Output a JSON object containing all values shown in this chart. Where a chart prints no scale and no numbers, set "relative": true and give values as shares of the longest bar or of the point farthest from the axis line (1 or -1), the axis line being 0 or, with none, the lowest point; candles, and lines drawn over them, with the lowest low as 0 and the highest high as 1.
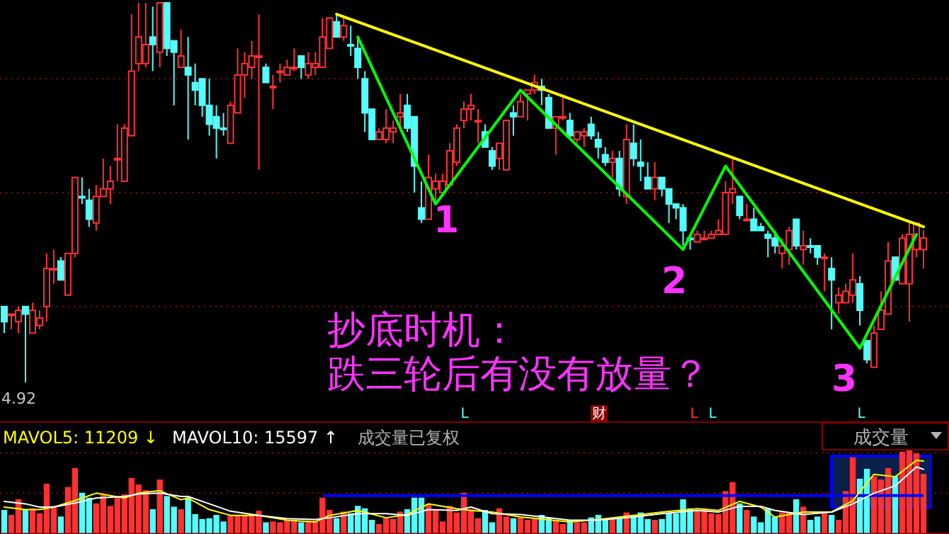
{
  "chart_data": [
    {
      "type": "candlestick",
      "relative": true,
      "ref_lines": [
        {
          "axis": "y",
          "value": 0.8,
          "color": "#7a1010",
          "line_style": "dotted"
        },
        {
          "axis": "y",
          "value": 0.5,
          "color": "#7a1010",
          "line_style": "dotted"
        },
        {
          "axis": "y",
          "value": 0.2,
          "color": "#7a1010",
          "line_style": "dotted"
        }
      ],
      "categories": [
        null,
        null,
        null,
        null,
        null,
        null,
        null,
        null,
        null,
        null,
        null,
        null,
        null,
        null,
        null,
        null,
        null,
        null,
        null,
        null,
        null,
        null,
        null,
        null,
        null,
        null,
        null,
        null,
        null,
        null,
        null,
        null,
        null,
        null,
        null,
        null,
        null,
        null,
        null,
        null,
        null,
        null,
        null,
        null,
        null,
        null,
        null,
        null,
        null,
        null,
        null,
        null,
        null,
        null,
        null,
        null,
        null,
        null,
        null,
        null,
        null,
        null,
        null,
        null,
        null,
        null,
        null,
        null,
        null,
        null,
        null,
        null,
        null,
        null,
        null,
        null,
        null,
        null,
        null,
        null,
        null,
        null,
        null,
        null,
        null,
        null,
        null,
        null,
        null,
        null,
        null,
        null,
        null,
        null,
        null,
        null,
        null,
        null,
        null,
        null,
        null,
        null,
        null,
        null,
        null,
        null,
        null,
        null,
        null,
        null,
        null,
        null,
        null,
        null,
        null,
        null,
        null,
        null,
        null,
        null,
        null,
        null,
        null,
        null,
        null,
        null,
        null,
        null,
        null,
        null,
        null
      ],
      "ohlc": [
        [
          0.2,
          0.2,
          0.13,
          0.16
        ],
        [
          0.18,
          0.18,
          0.14,
          0.18
        ],
        [
          0.16,
          0.2,
          0.13,
          0.19
        ],
        [
          0.2,
          0.2,
          0,
          0.18
        ],
        [
          0.13,
          0.21,
          0.13,
          0.19
        ],
        [
          0.15,
          0.19,
          0.14,
          0.17
        ],
        [
          0.2,
          0.34,
          0.16,
          0.3
        ],
        [
          0.3,
          0.35,
          0.26,
          0.3
        ],
        [
          0.32,
          0.33,
          0.27,
          0.27
        ],
        [
          0.23,
          0.34,
          0.23,
          0.34
        ],
        [
          0.34,
          0.54,
          0.33,
          0.54
        ],
        [
          0.49,
          0.54,
          0.47,
          0.49
        ],
        [
          0.48,
          0.51,
          0.41,
          0.43
        ],
        [
          0.42,
          0.52,
          0.4,
          0.49
        ],
        [
          0.49,
          0.59,
          0.49,
          0.51
        ],
        [
          0.51,
          0.57,
          0.47,
          0.53
        ],
        [
          0.59,
          0.68,
          0.53,
          0.59
        ],
        [
          0.53,
          0.68,
          0.53,
          0.67
        ],
        [
          0.65,
          0.97,
          0.65,
          0.82
        ],
        [
          0.84,
          1,
          0.82,
          0.91
        ],
        [
          0.84,
          1,
          0.83,
          0.89
        ],
        [
          0.91,
          0.99,
          0.82,
          0.89
        ],
        [
          0.87,
          1,
          0.83,
          1
        ],
        [
          1,
          1,
          0.86,
          0.88
        ],
        [
          0.9,
          0.9,
          0.73,
          0.87
        ],
        [
          0.83,
          0.93,
          0.83,
          0.86
        ],
        [
          0.83,
          0.91,
          0.64,
          0.81
        ],
        [
          0.79,
          0.84,
          0.73,
          0.77
        ],
        [
          0.8,
          0.8,
          0.7,
          0.73
        ],
        [
          0.73,
          0.8,
          0.65,
          0.68
        ],
        [
          0.7,
          0.73,
          0.59,
          0.67
        ],
        [
          0.67,
          0.71,
          0.65,
          0.67
        ],
        [
          0.63,
          0.74,
          0.63,
          0.73
        ],
        [
          0.71,
          0.88,
          0.71,
          0.81
        ],
        [
          0.81,
          0.87,
          0.75,
          0.84
        ],
        [
          0.83,
          0.9,
          0.8,
          0.86
        ],
        [
          0.86,
          0.97,
          0.56,
          0.86
        ],
        [
          0.83,
          0.84,
          0.79,
          0.79
        ],
        [
          0.78,
          0.81,
          0.72,
          0.78
        ],
        [
          0.82,
          0.84,
          0.79,
          0.82
        ],
        [
          0.81,
          0.85,
          0.81,
          0.83
        ],
        [
          0.83,
          0.88,
          0.82,
          0.83
        ],
        [
          0.86,
          0.86,
          0.8,
          0.83
        ],
        [
          0.81,
          0.87,
          0.8,
          0.84
        ],
        [
          0.83,
          0.87,
          0.81,
          0.84
        ],
        [
          0.83,
          0.96,
          0.83,
          0.91
        ],
        [
          0.88,
          0.96,
          0.88,
          0.96
        ],
        [
          0.95,
          0.97,
          0.91,
          0.91
        ],
        [
          0.91,
          0.96,
          0.9,
          0.94
        ],
        [
          0.89,
          0.94,
          0.86,
          0.89
        ],
        [
          0.88,
          0.91,
          0.8,
          0.83
        ],
        [
          0.8,
          0.82,
          0.66,
          0.71
        ],
        [
          0.72,
          0.72,
          0.64,
          0.64
        ],
        [
          0.64,
          0.67,
          0.64,
          0.66
        ],
        [
          0.64,
          0.72,
          0.63,
          0.67
        ],
        [
          0.66,
          0.69,
          0.63,
          0.67
        ],
        [
          0.7,
          0.76,
          0.67,
          0.71
        ],
        [
          0.73,
          0.76,
          0.66,
          0.67
        ],
        [
          0.7,
          0.7,
          0.5,
          0.57
        ],
        [
          0.46,
          0.53,
          0.42,
          0.43
        ],
        [
          0.43,
          0.6,
          0.43,
          0.54
        ],
        [
          0.51,
          0.55,
          0.47,
          0.53
        ],
        [
          0.5,
          0.55,
          0.49,
          0.53
        ],
        [
          0.52,
          0.63,
          0.52,
          0.61
        ],
        [
          0.58,
          0.68,
          0.57,
          0.67
        ],
        [
          0.69,
          0.74,
          0.67,
          0.72
        ],
        [
          0.72,
          0.76,
          0.69,
          0.73
        ],
        [
          0.69,
          0.72,
          0.63,
          0.69
        ],
        [
          0.66,
          0.68,
          0.62,
          0.62
        ],
        [
          0.61,
          0.62,
          0.56,
          0.57
        ],
        [
          0.59,
          0.63,
          0.56,
          0.63
        ],
        [
          0.56,
          0.69,
          0.56,
          0.69
        ],
        [
          0.71,
          0.73,
          0.65,
          0.7
        ],
        [
          0.7,
          0.76,
          0.7,
          0.74
        ],
        [
          0.76,
          0.77,
          0.69,
          0.77
        ],
        [
          0.77,
          0.81,
          0.76,
          0.79
        ],
        [
          0.78,
          0.8,
          0.73,
          0.77
        ],
        [
          0.75,
          0.76,
          0.67,
          0.67
        ],
        [
          0.67,
          0.7,
          0.6,
          0.7
        ],
        [
          0.7,
          0.75,
          0.69,
          0.7
        ],
        [
          0.69,
          0.71,
          0.64,
          0.65
        ],
        [
          0.64,
          0.66,
          0.63,
          0.66
        ],
        [
          0.65,
          0.67,
          0.62,
          0.66
        ],
        [
          0.68,
          0.7,
          0.64,
          0.65
        ],
        [
          0.64,
          0.66,
          0.59,
          0.62
        ],
        [
          0.6,
          0.62,
          0.57,
          0.58
        ],
        [
          0.58,
          0.61,
          0.54,
          0.59
        ],
        [
          0.59,
          0.61,
          0.49,
          0.51
        ],
        [
          0.49,
          0.68,
          0.47,
          0.64
        ],
        [
          0.63,
          0.68,
          0.57,
          0.59
        ],
        [
          0.58,
          0.64,
          0.53,
          0.57
        ],
        [
          0.54,
          0.58,
          0.51,
          0.51
        ],
        [
          0.51,
          0.58,
          0.48,
          0.54
        ],
        [
          0.54,
          0.54,
          0.49,
          0.51
        ],
        [
          0.51,
          0.51,
          0.42,
          0.47
        ],
        [
          0.47,
          0.47,
          0.43,
          0.46
        ],
        [
          0.46,
          0.47,
          0.36,
          0.4
        ],
        [
          0.38,
          0.39,
          0.35,
          0.38
        ],
        [
          0.37,
          0.4,
          0.37,
          0.39
        ],
        [
          0.38,
          0.4,
          0.38,
          0.38
        ],
        [
          0.38,
          0.4,
          0.38,
          0.39
        ],
        [
          0.39,
          0.43,
          0.39,
          0.4
        ],
        [
          0.39,
          0.53,
          0.39,
          0.5
        ],
        [
          0.5,
          0.59,
          0.47,
          0.51
        ],
        [
          0.49,
          0.49,
          0.43,
          0.44
        ],
        [
          0.43,
          0.47,
          0.43,
          0.43
        ],
        [
          0.43,
          0.46,
          0.4,
          0.4
        ],
        [
          0.41,
          0.42,
          0.4,
          0.4
        ],
        [
          0.39,
          0.4,
          0.33,
          0.38
        ],
        [
          0.38,
          0.4,
          0.34,
          0.36
        ],
        [
          0.34,
          0.38,
          0.3,
          0.36
        ],
        [
          0.35,
          0.41,
          0.31,
          0.4
        ],
        [
          0.43,
          0.43,
          0.35,
          0.36
        ],
        [
          0.35,
          0.4,
          0.31,
          0.36
        ],
        [
          0.36,
          0.38,
          0.34,
          0.36
        ],
        [
          0.36,
          0.36,
          0.31,
          0.33
        ],
        [
          0.33,
          0.34,
          0.24,
          0.33
        ],
        [
          0.3,
          0.33,
          0.14,
          0.27
        ],
        [
          0.21,
          0.25,
          0.18,
          0.23
        ],
        [
          0.21,
          0.26,
          0.21,
          0.24
        ],
        [
          0.23,
          0.34,
          0.21,
          0.27
        ],
        [
          0.26,
          0.28,
          0.15,
          0.19
        ],
        [
          0.11,
          0.11,
          0.05,
          0.06
        ],
        [
          0.04,
          0.15,
          0.04,
          0.13
        ],
        [
          0.14,
          0.24,
          0.14,
          0.19
        ],
        [
          0.18,
          0.37,
          0.18,
          0.32
        ],
        [
          0.33,
          0.33,
          0.27,
          0.27
        ],
        [
          0.26,
          0.39,
          0.26,
          0.38
        ],
        [
          0.26,
          0.42,
          0.16,
          0.39
        ],
        [
          0.35,
          0.42,
          0.33,
          0.42
        ],
        [
          0.35,
          0.4,
          0.3,
          0.38
        ]
      ],
      "colors": [
        "#54fcfc",
        "#ff3232",
        "#ff3232",
        "#54fcfc",
        "#ff3232",
        "#ff3232",
        "#ff3232",
        "#ff3232",
        "#54fcfc",
        "#ff3232",
        "#ff3232",
        "#54fcfc",
        "#54fcfc",
        "#ff3232",
        "#ff3232",
        "#ff3232",
        "#ff3232",
        "#ff3232",
        "#ff3232",
        "#ff3232",
        "#ff3232",
        "#54fcfc",
        "#ff3232",
        "#54fcfc",
        "#54fcfc",
        "#ff3232",
        "#54fcfc",
        "#54fcfc",
        "#54fcfc",
        "#54fcfc",
        "#54fcfc",
        "#54fcfc",
        "#ff3232",
        "#ff3232",
        "#ff3232",
        "#ff3232",
        "#ff3232",
        "#54fcfc",
        "#ff3232",
        "#ff3232",
        "#ff3232",
        "#ff3232",
        "#54fcfc",
        "#ff3232",
        "#ff3232",
        "#ff3232",
        "#ff3232",
        "#54fcfc",
        "#ff3232",
        "#54fcfc",
        "#54fcfc",
        "#54fcfc",
        "#54fcfc",
        "#ff3232",
        "#ff3232",
        "#ff3232",
        "#ff3232",
        "#54fcfc",
        "#54fcfc",
        "#54fcfc",
        "#ff3232",
        "#ff3232",
        "#ff3232",
        "#ff3232",
        "#ff3232",
        "#ff3232",
        "#ff3232",
        "#ff3232",
        "#54fcfc",
        "#54fcfc",
        "#ff3232",
        "#ff3232",
        "#54fcfc",
        "#ff3232",
        "#ff3232",
        "#ff3232",
        "#54fcfc",
        "#54fcfc",
        "#ff3232",
        "#ff3232",
        "#54fcfc",
        "#ff3232",
        "#ff3232",
        "#54fcfc",
        "#54fcfc",
        "#54fcfc",
        "#ff3232",
        "#54fcfc",
        "#ff3232",
        "#54fcfc",
        "#54fcfc",
        "#54fcfc",
        "#ff3232",
        "#54fcfc",
        "#54fcfc",
        "#54fcfc",
        "#54fcfc",
        "#54fcfc",
        "#ff3232",
        "#ff3232",
        "#ff3232",
        "#ff3232",
        "#ff3232",
        "#ff3232",
        "#54fcfc",
        "#ff3232",
        "#54fcfc",
        "#54fcfc",
        "#54fcfc",
        "#54fcfc",
        "#ff3232",
        "#ff3232",
        "#54fcfc",
        "#ff3232",
        "#54fcfc",
        "#54fcfc",
        "#ff3232",
        "#54fcfc",
        "#ff3232",
        "#ff3232",
        "#ff3232",
        "#54fcfc",
        "#54fcfc",
        "#ff3232",
        "#ff3232",
        "#ff3232",
        "#54fcfc",
        "#ff3232",
        "#ff3232",
        "#ff3232",
        "#ff3232"
      ],
      "series": [
        {
          "type": "line",
          "color": "#ffff00",
          "values": [
            null,
            null,
            null,
            null,
            null,
            null,
            null,
            null,
            null,
            null,
            null,
            null,
            null,
            null,
            null,
            null,
            null,
            null,
            null,
            null,
            null,
            null,
            null,
            null,
            null,
            null,
            null,
            null,
            null,
            null,
            null,
            null,
            null,
            null,
            null,
            null,
            null,
            null,
            null,
            null,
            null,
            null,
            null,
            null,
            null,
            null,
            null,
            0.97,
            null,
            null,
            null,
            null,
            null,
            null,
            null,
            null,
            null,
            null,
            null,
            null,
            null,
            null,
            null,
            null,
            null,
            null,
            null,
            null,
            null,
            null,
            null,
            null,
            null,
            null,
            null,
            null,
            null,
            null,
            null,
            null,
            null,
            null,
            null,
            null,
            null,
            null,
            null,
            null,
            null,
            null,
            null,
            null,
            null,
            null,
            null,
            null,
            null,
            null,
            null,
            null,
            null,
            null,
            null,
            null,
            null,
            null,
            null,
            null,
            null,
            null,
            null,
            null,
            null,
            null,
            null,
            null,
            null,
            null,
            null,
            null,
            null,
            null,
            null,
            null,
            null,
            null,
            null,
            null,
            null,
            null,
            0.41
          ]
        },
        {
          "type": "line",
          "color": "#00ff00",
          "values": [
            null,
            null,
            null,
            null,
            null,
            null,
            null,
            null,
            null,
            null,
            null,
            null,
            null,
            null,
            null,
            null,
            null,
            null,
            null,
            null,
            null,
            null,
            null,
            null,
            null,
            null,
            null,
            null,
            null,
            null,
            null,
            null,
            null,
            null,
            null,
            null,
            null,
            null,
            null,
            null,
            null,
            null,
            null,
            null,
            null,
            null,
            null,
            null,
            null,
            null,
            0.91,
            null,
            null,
            null,
            null,
            null,
            null,
            null,
            null,
            null,
            null,
            0.47,
            null,
            null,
            null,
            null,
            null,
            null,
            null,
            null,
            null,
            null,
            null,
            0.77,
            null,
            null,
            null,
            null,
            null,
            null,
            null,
            null,
            null,
            null,
            null,
            null,
            null,
            null,
            null,
            null,
            null,
            null,
            null,
            null,
            null,
            null,
            0.35,
            null,
            null,
            null,
            null,
            null,
            0.57,
            null,
            null,
            null,
            null,
            null,
            null,
            null,
            null,
            null,
            null,
            null,
            null,
            null,
            null,
            null,
            null,
            null,
            null,
            0.09,
            null,
            null,
            null,
            null,
            null,
            null,
            null,
            0.39,
            null
          ]
        }
      ],
      "annotations": [
        "1",
        "2",
        "3",
        "抄底时机：",
        "跌三轮后有没有放量？",
        "4.92",
        "L",
        "财",
        "L",
        "L",
        "L"
      ]
    },
    {
      "type": "bar",
      "relative": true,
      "legend": "top left",
      "ref_lines": [
        {
          "axis": "y",
          "value": 0.97,
          "color": "#7a1010",
          "line_style": "dotted"
        },
        {
          "axis": "y",
          "value": 0.48,
          "color": "#7a1010",
          "line_style": "dotted"
        },
        {
          "axis": "y",
          "value": 0.45,
          "color": "#0000ff"
        }
      ],
      "categories": [
        null,
        null,
        null,
        null,
        null,
        null,
        null,
        null,
        null,
        null,
        null,
        null,
        null,
        null,
        null,
        null,
        null,
        null,
        null,
        null,
        null,
        null,
        null,
        null,
        null,
        null,
        null,
        null,
        null,
        null,
        null,
        null,
        null,
        null,
        null,
        null,
        null,
        null,
        null,
        null,
        null,
        null,
        null,
        null,
        null,
        null,
        null,
        null,
        null,
        null,
        null,
        null,
        null,
        null,
        null,
        null,
        null,
        null,
        null,
        null,
        null,
        null,
        null,
        null,
        null,
        null,
        null,
        null,
        null,
        null,
        null,
        null,
        null,
        null,
        null,
        null,
        null,
        null,
        null,
        null,
        null,
        null,
        null,
        null,
        null,
        null,
        null,
        null,
        null,
        null,
        null,
        null,
        null,
        null,
        null,
        null,
        null,
        null,
        null,
        null,
        null,
        null,
        null,
        null,
        null,
        null,
        null,
        null,
        null,
        null,
        null,
        null,
        null,
        null,
        null,
        null,
        null,
        null,
        null,
        null,
        null,
        null,
        null,
        null,
        null,
        null,
        null,
        null,
        null,
        null,
        null
      ],
      "values": [
        0.27,
        0.21,
        0.4,
        0.27,
        0.29,
        0.23,
        0.59,
        0.32,
        0.19,
        0.55,
        0.78,
        0.48,
        0.42,
        0.35,
        0.45,
        0.32,
        0.42,
        0.46,
        0.66,
        0.58,
        0.51,
        0.28,
        0.64,
        0.44,
        0.31,
        0.28,
        0.42,
        0.22,
        0.16,
        0.17,
        0.21,
        0.13,
        0.21,
        0.21,
        0.21,
        0.21,
        0.26,
        0.12,
        0.13,
        0.12,
        0.14,
        0.15,
        0.12,
        0.14,
        0.14,
        0.42,
        0.27,
        0.17,
        0.25,
        0.23,
        0.32,
        0.29,
        0.15,
        0.1,
        0.17,
        0.16,
        0.25,
        0.28,
        0.42,
        0.42,
        0.34,
        0.27,
        0.13,
        0.32,
        0.24,
        0.48,
        0.28,
        0.17,
        0.27,
        0.12,
        0.29,
        0.19,
        0.17,
        0.18,
        0.15,
        0.16,
        0.21,
        0.17,
        0.15,
        0.1,
        0.15,
        0.12,
        0.12,
        0.18,
        0.21,
        0.16,
        0.16,
        0.17,
        0.24,
        0.21,
        0.24,
        0.16,
        0.15,
        0.16,
        0.23,
        0.23,
        0.4,
        0.29,
        0.27,
        0.29,
        0.23,
        0.22,
        0.5,
        0.61,
        0.35,
        0.27,
        0.19,
        0.12,
        0.29,
        0.19,
        0.24,
        0.24,
        0.4,
        0.31,
        0.15,
        0.19,
        0.23,
        0.21,
        0.15,
        0.5,
        0.91,
        0.65,
        0.77,
        0.68,
        0.64,
        0.78,
        0.68,
        0.98,
        1,
        0.96,
        0.71
      ],
      "colors": [
        "#54fcfc",
        "#ff3232",
        "#ff3232",
        "#54fcfc",
        "#ff3232",
        "#ff3232",
        "#ff3232",
        "#ff3232",
        "#54fcfc",
        "#ff3232",
        "#ff3232",
        "#54fcfc",
        "#54fcfc",
        "#ff3232",
        "#ff3232",
        "#ff3232",
        "#ff3232",
        "#ff3232",
        "#ff3232",
        "#ff3232",
        "#ff3232",
        "#54fcfc",
        "#ff3232",
        "#54fcfc",
        "#54fcfc",
        "#ff3232",
        "#54fcfc",
        "#54fcfc",
        "#54fcfc",
        "#54fcfc",
        "#54fcfc",
        "#54fcfc",
        "#ff3232",
        "#ff3232",
        "#ff3232",
        "#ff3232",
        "#ff3232",
        "#54fcfc",
        "#ff3232",
        "#ff3232",
        "#ff3232",
        "#ff3232",
        "#54fcfc",
        "#ff3232",
        "#ff3232",
        "#ff3232",
        "#ff3232",
        "#54fcfc",
        "#ff3232",
        "#54fcfc",
        "#54fcfc",
        "#54fcfc",
        "#54fcfc",
        "#ff3232",
        "#ff3232",
        "#ff3232",
        "#ff3232",
        "#54fcfc",
        "#54fcfc",
        "#54fcfc",
        "#ff3232",
        "#ff3232",
        "#ff3232",
        "#ff3232",
        "#ff3232",
        "#ff3232",
        "#ff3232",
        "#ff3232",
        "#54fcfc",
        "#54fcfc",
        "#ff3232",
        "#ff3232",
        "#54fcfc",
        "#ff3232",
        "#ff3232",
        "#ff3232",
        "#54fcfc",
        "#54fcfc",
        "#ff3232",
        "#ff3232",
        "#54fcfc",
        "#ff3232",
        "#ff3232",
        "#54fcfc",
        "#54fcfc",
        "#54fcfc",
        "#ff3232",
        "#54fcfc",
        "#ff3232",
        "#54fcfc",
        "#54fcfc",
        "#54fcfc",
        "#ff3232",
        "#54fcfc",
        "#54fcfc",
        "#54fcfc",
        "#54fcfc",
        "#54fcfc",
        "#ff3232",
        "#ff3232",
        "#ff3232",
        "#ff3232",
        "#ff3232",
        "#ff3232",
        "#54fcfc",
        "#ff3232",
        "#54fcfc",
        "#54fcfc",
        "#54fcfc",
        "#54fcfc",
        "#ff3232",
        "#ff3232",
        "#54fcfc",
        "#ff3232",
        "#54fcfc",
        "#54fcfc",
        "#ff3232",
        "#54fcfc",
        "#ff3232",
        "#ff3232",
        "#ff3232",
        "#54fcfc",
        "#54fcfc",
        "#ff3232",
        "#ff3232",
        "#ff3232",
        "#54fcfc",
        "#ff3232",
        "#ff3232",
        "#ff3232",
        "#ff3232"
      ],
      "series": [
        {
          "name": "MAVOL5: 11209 ↓",
          "type": "line",
          "color": "#ffff00",
          "values": [
            0.31,
            null,
            null,
            0.28,
            null,
            0.28,
            null,
            0.31,
            null,
            null,
            0.39,
            null,
            null,
            0.48,
            null,
            null,
            null,
            0.42,
            null,
            0.48,
            null,
            null,
            0.51,
            null,
            null,
            0.4,
            0.42,
            null,
            null,
            0.28,
            null,
            null,
            0.21,
            null,
            null,
            null,
            0.21,
            null,
            null,
            null,
            0.15,
            null,
            null,
            null,
            0.13,
            null,
            0.21,
            null,
            null,
            null,
            0.27,
            null,
            null,
            null,
            0.18,
            null,
            null,
            0.22,
            null,
            null,
            0.35,
            null,
            null,
            null,
            0.29,
            null,
            0.27,
            null,
            null,
            0.25,
            null,
            null,
            null,
            0.19,
            null,
            null,
            null,
            null,
            null,
            null,
            0.13,
            null,
            null,
            null,
            0.16,
            null,
            null,
            null,
            null,
            0.21,
            null,
            null,
            null,
            0.25,
            null,
            null,
            null,
            null,
            0.29,
            null,
            null,
            0.27,
            null,
            null,
            0.38,
            null,
            null,
            0.31,
            null,
            0.19,
            null,
            null,
            null,
            0.25,
            null,
            null,
            null,
            0.25,
            null,
            null,
            0.39,
            null,
            null,
            0.71,
            null,
            null,
            0.68,
            null,
            null,
            0.88,
            0.87
          ]
        },
        {
          "name": "MAVOL10: 15597 ↑",
          "type": "line",
          "color": "#ffffff",
          "values": [
            0.38,
            null,
            null,
            0.35,
            null,
            0.31,
            null,
            0.31,
            null,
            null,
            0.36,
            null,
            null,
            0.42,
            null,
            null,
            null,
            0.44,
            null,
            0.47,
            null,
            null,
            0.48,
            null,
            null,
            0.44,
            0.44,
            null,
            null,
            0.35,
            null,
            null,
            0.26,
            null,
            null,
            null,
            0.21,
            null,
            null,
            null,
            0.17,
            null,
            null,
            null,
            0.16,
            null,
            0.18,
            null,
            null,
            null,
            0.23,
            null,
            null,
            null,
            0.23,
            null,
            null,
            0.21,
            null,
            null,
            0.28,
            null,
            null,
            null,
            0.27,
            null,
            0.31,
            null,
            null,
            0.23,
            null,
            null,
            null,
            0.22,
            null,
            null,
            null,
            null,
            null,
            null,
            0.15,
            null,
            null,
            null,
            0.15,
            null,
            null,
            null,
            null,
            0.19,
            null,
            null,
            null,
            0.23,
            null,
            null,
            null,
            null,
            0.27,
            null,
            null,
            0.25,
            null,
            null,
            0.32,
            null,
            null,
            0.32,
            null,
            0.27,
            null,
            null,
            null,
            0.22,
            null,
            null,
            null,
            0.25,
            null,
            null,
            0.35,
            null,
            null,
            0.48,
            null,
            null,
            0.57,
            null,
            null,
            0.8,
            0.77
          ]
        }
      ],
      "annotations": [
        "成交量已复权",
        "成交量"
      ]
    }
  ]
}
